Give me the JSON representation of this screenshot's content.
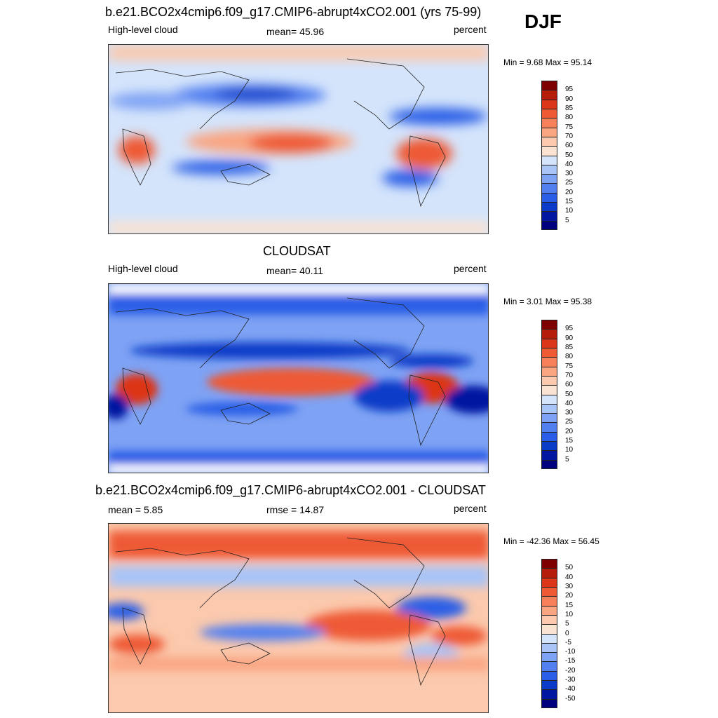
{
  "season": "DJF",
  "panels": [
    {
      "id": "model",
      "title": "b.e21.BCO2x4cmip6.f09_g17.CMIP6-abrupt4xCO2.001 (yrs 75-99)",
      "left_label": "High-level cloud",
      "center_label": "mean=  45.96",
      "right_label": "percent",
      "minmax": "Min =   9.68 Max =  95.14"
    },
    {
      "id": "obs",
      "title": "CLOUDSAT",
      "left_label": "High-level cloud",
      "center_label": "mean=  40.11",
      "right_label": "percent",
      "minmax": "Min =   3.01 Max =  95.38"
    },
    {
      "id": "diff",
      "title": "b.e21.BCO2x4cmip6.f09_g17.CMIP6-abrupt4xCO2.001 - CLOUDSAT",
      "left_label": "mean =   5.85",
      "center_label": "rmse =  14.87",
      "right_label": "percent",
      "minmax": "Min = -42.36 Max =  56.45"
    }
  ],
  "chart_data": [
    {
      "type": "heatmap",
      "title": "b.e21.BCO2x4cmip6.f09_g17.CMIP6-abrupt4xCO2.001 (yrs 75-99)",
      "variable": "High-level cloud",
      "units": "percent",
      "season": "DJF",
      "mean": 45.96,
      "min": 9.68,
      "max": 95.14,
      "levels": [
        5,
        10,
        15,
        20,
        25,
        30,
        40,
        50,
        60,
        70,
        75,
        80,
        85,
        90,
        95
      ],
      "level_labels": [
        "5",
        "10",
        "15",
        "20",
        "25",
        "30",
        "40",
        "50",
        "60",
        "70",
        "75",
        "80",
        "85",
        "90",
        "95"
      ],
      "colors": [
        "#00007f",
        "#0018a0",
        "#0a3cc8",
        "#2a5ee6",
        "#5380f0",
        "#7ea2f4",
        "#a9c4f7",
        "#d4e4fb",
        "#fbe3d2",
        "#fbc9ad",
        "#f9a582",
        "#f6805a",
        "#ee5a34",
        "#dc3618",
        "#b51d0a",
        "#7f0000"
      ]
    },
    {
      "type": "heatmap",
      "title": "CLOUDSAT",
      "variable": "High-level cloud",
      "units": "percent",
      "season": "DJF",
      "mean": 40.11,
      "min": 3.01,
      "max": 95.38,
      "levels": [
        5,
        10,
        15,
        20,
        25,
        30,
        40,
        50,
        60,
        70,
        75,
        80,
        85,
        90,
        95
      ],
      "level_labels": [
        "5",
        "10",
        "15",
        "20",
        "25",
        "30",
        "40",
        "50",
        "60",
        "70",
        "75",
        "80",
        "85",
        "90",
        "95"
      ],
      "colors": [
        "#00007f",
        "#0018a0",
        "#0a3cc8",
        "#2a5ee6",
        "#5380f0",
        "#7ea2f4",
        "#a9c4f7",
        "#d4e4fb",
        "#fbe3d2",
        "#fbc9ad",
        "#f9a582",
        "#f6805a",
        "#ee5a34",
        "#dc3618",
        "#b51d0a",
        "#7f0000"
      ]
    },
    {
      "type": "heatmap",
      "title": "b.e21.BCO2x4cmip6.f09_g17.CMIP6-abrupt4xCO2.001 - CLOUDSAT",
      "variable": "High-level cloud difference",
      "units": "percent",
      "season": "DJF",
      "mean": 5.85,
      "rmse": 14.87,
      "min": -42.36,
      "max": 56.45,
      "levels": [
        -50,
        -40,
        -30,
        -20,
        -15,
        -10,
        -5,
        0,
        5,
        10,
        15,
        20,
        30,
        40,
        50
      ],
      "level_labels": [
        "-50",
        "-40",
        "-30",
        "-20",
        "-15",
        "-10",
        "-5",
        "0",
        "5",
        "10",
        "15",
        "20",
        "30",
        "40",
        "50"
      ],
      "colors": [
        "#00007f",
        "#0018a0",
        "#0a3cc8",
        "#2a5ee6",
        "#5380f0",
        "#7ea2f4",
        "#a9c4f7",
        "#d4e4fb",
        "#fbe3d2",
        "#fbc9ad",
        "#f9a582",
        "#f6805a",
        "#ee5a34",
        "#dc3618",
        "#b51d0a",
        "#7f0000"
      ]
    }
  ]
}
